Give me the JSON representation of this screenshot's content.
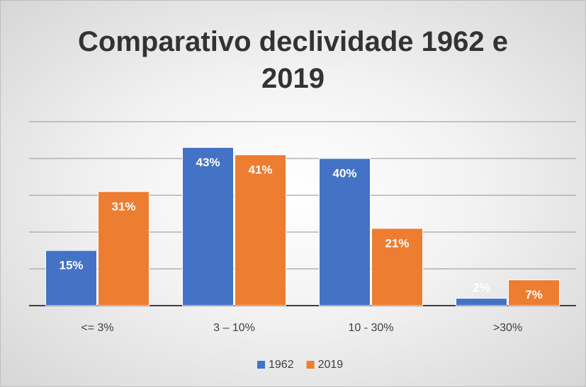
{
  "chart_data": {
    "type": "bar",
    "title": "Comparativo declividade 1962 e 2019",
    "categories": [
      "<= 3%",
      "3 – 10%",
      "10 - 30%",
      ">30%"
    ],
    "series": [
      {
        "name": "1962",
        "color": "#4472c4",
        "values": [
          15,
          43,
          40,
          2
        ],
        "value_labels": [
          "15%",
          "43%",
          "40%",
          "2%"
        ]
      },
      {
        "name": "2019",
        "color": "#ed7d31",
        "values": [
          31,
          41,
          21,
          7
        ],
        "value_labels": [
          "31%",
          "41%",
          "21%",
          "7%"
        ]
      }
    ],
    "ylim": [
      0,
      50
    ],
    "yticks": [
      0,
      10,
      20,
      30,
      40,
      50
    ],
    "grid": true,
    "legend": "bottom"
  }
}
